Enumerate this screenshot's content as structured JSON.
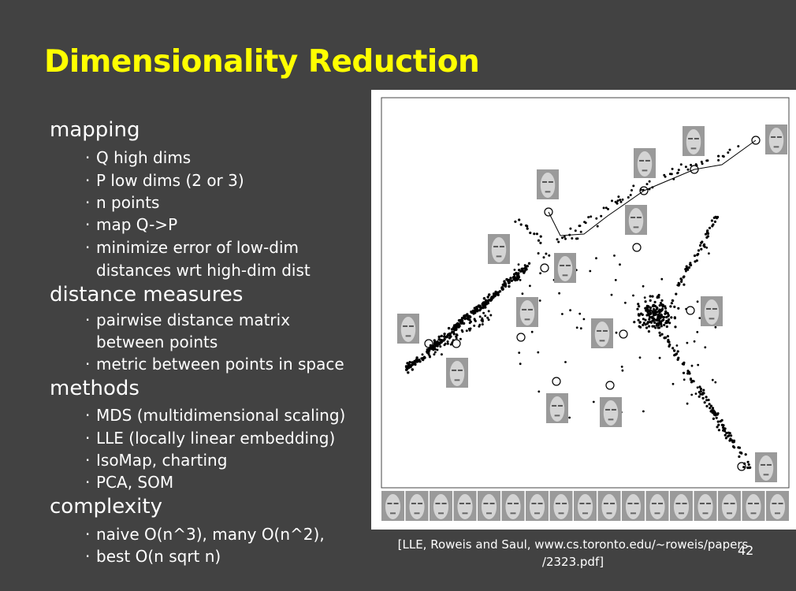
{
  "slide": {
    "title": "Dimensionality Reduction",
    "page_number": "42",
    "caption_line1": "[LLE, Roweis and Saul, www.cs.toronto.edu/~roweis/papers",
    "caption_line2": "/2323.pdf]"
  },
  "outline": {
    "mapping": {
      "heading": "mapping",
      "items": [
        "Q high dims",
        "P low dims (2 or 3)",
        "n points",
        "map Q->P",
        "minimize error of low-dim"
      ],
      "continuation": "distances wrt high-dim dist"
    },
    "distance": {
      "heading": "distance measures",
      "item1": "pairwise distance matrix",
      "item1_cont": "between points",
      "item2": "metric between points in space"
    },
    "methods": {
      "heading": "methods",
      "items": [
        "MDS (multidimensional scaling)",
        "LLE (locally linear embedding)",
        "IsoMap, charting",
        "PCA, SOM"
      ]
    },
    "complexity": {
      "heading": "complexity",
      "items": [
        "naive O(n^3), many O(n^2),",
        "best O(n sqrt n)"
      ]
    },
    "bullet_glyph": "·"
  },
  "colors": {
    "background": "#424242",
    "title": "#ffff00",
    "text": "#ffffff",
    "figure_bg": "#ffffff",
    "points": "#000000"
  }
}
